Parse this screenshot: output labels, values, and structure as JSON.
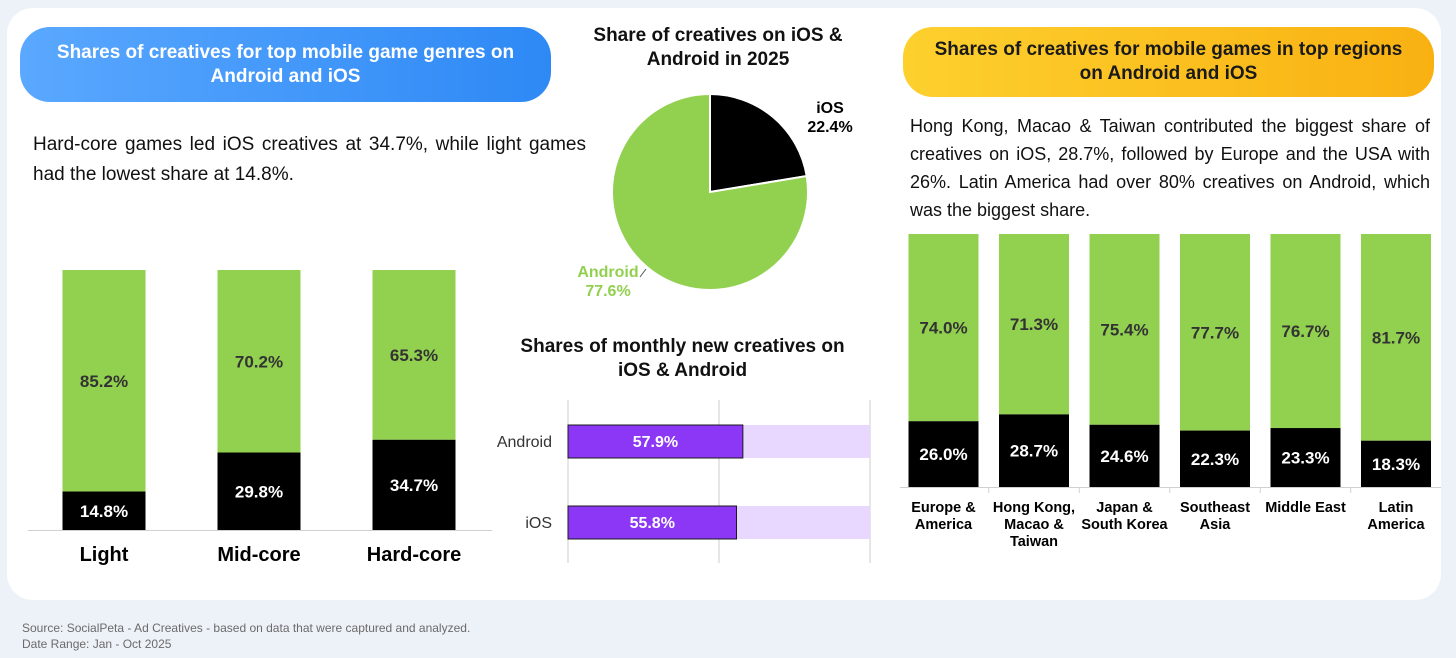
{
  "colors": {
    "android_green": "#92d050",
    "ios_black": "#000000",
    "monthly_bar": "#8b37f5",
    "monthly_track": "#e8d8ff",
    "blue_pill": "#3a91f5",
    "orange_pill": "#fbbc1a"
  },
  "left": {
    "header": "Shares of creatives for top mobile game genres on Android and iOS",
    "description": "Hard-core games led iOS creatives at 34.7%, while light games had the lowest share at 14.8%."
  },
  "center": {
    "pie_title": "Share of creatives on iOS & Android in 2025",
    "monthly_title": "Shares of monthly new creatives on iOS & Android"
  },
  "right": {
    "header": "Shares of creatives for mobile games in top regions on Android and iOS",
    "description": "Hong Kong, Macao & Taiwan contributed the biggest share of creatives on iOS, 28.7%, followed by Europe and the USA with 26%. Latin America had over 80% creatives on Android, which was the biggest share."
  },
  "chart_data": [
    {
      "type": "bar",
      "stacked": true,
      "title": "",
      "categories": [
        "Light",
        "Mid-core",
        "Hard-core"
      ],
      "series": [
        {
          "name": "",
          "values": [
            14.8,
            29.8,
            34.7
          ],
          "labels": [
            "14.8%",
            "29.8%",
            "34.7%"
          ]
        },
        {
          "name": "",
          "values": [
            85.2,
            70.2,
            65.3
          ],
          "labels": [
            "85.2%",
            "70.2%",
            "65.3%"
          ]
        }
      ],
      "ylim": [
        0,
        100
      ]
    },
    {
      "type": "pie",
      "title": "Share of creatives on iOS & Android in 2025",
      "slices": [
        {
          "name": "iOS",
          "value": 22.4,
          "label": "22.4%"
        },
        {
          "name": "Android",
          "value": 77.6,
          "label": "77.6%"
        }
      ]
    },
    {
      "type": "bar",
      "orientation": "horizontal",
      "title": "Shares of monthly new creatives on iOS & Android",
      "categories": [
        "Android",
        "iOS"
      ],
      "values": [
        57.9,
        55.8
      ],
      "labels": [
        "57.9%",
        "55.8%"
      ],
      "xlim": [
        0,
        100
      ],
      "grid": true
    },
    {
      "type": "bar",
      "stacked": true,
      "title": "",
      "categories": [
        [
          "Europe &",
          "America"
        ],
        [
          "Hong Kong,",
          "Macao &",
          "Taiwan"
        ],
        [
          "Japan &",
          "South Korea"
        ],
        [
          "Southeast",
          "Asia"
        ],
        [
          "Middle East"
        ],
        [
          "Latin",
          "America"
        ]
      ],
      "series": [
        {
          "name": "",
          "values": [
            26.0,
            28.7,
            24.6,
            22.3,
            23.3,
            18.3
          ],
          "labels": [
            "26.0%",
            "28.7%",
            "24.6%",
            "22.3%",
            "23.3%",
            "18.3%"
          ]
        },
        {
          "name": "",
          "values": [
            74.0,
            71.3,
            75.4,
            77.7,
            76.7,
            81.7
          ],
          "labels": [
            "74.0%",
            "71.3%",
            "75.4%",
            "77.7%",
            "76.7%",
            "81.7%"
          ]
        }
      ],
      "ylim": [
        0,
        100
      ]
    }
  ],
  "footer": {
    "source": "Source: SocialPeta - Ad Creatives - based on data that were captured and analyzed.",
    "date_range": "Date Range: Jan - Oct 2025"
  }
}
